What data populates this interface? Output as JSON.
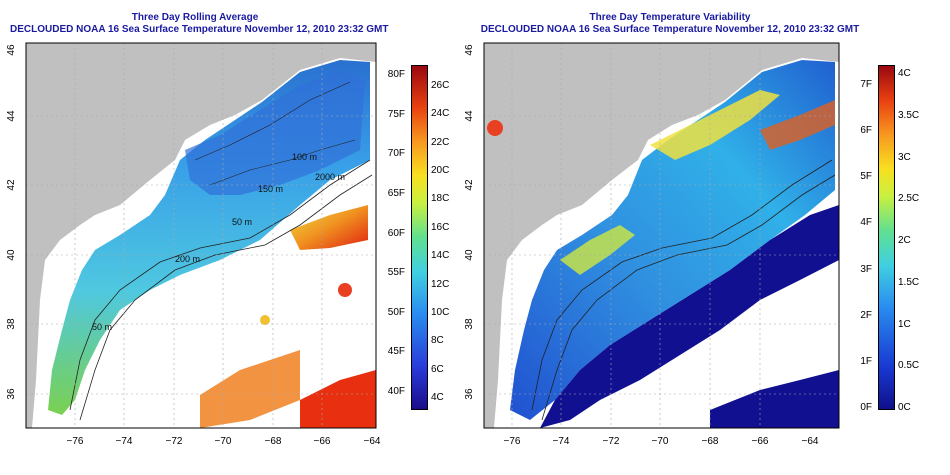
{
  "left": {
    "title1": "Three Day Rolling Average",
    "title2": "DECLOUDED NOAA 16 Sea Surface Temperature November 12, 2010 23:32 GMT",
    "colorbar_f": [
      "80F",
      "75F",
      "70F",
      "65F",
      "60F",
      "55F",
      "50F",
      "45F",
      "40F"
    ],
    "colorbar_c": [
      "26C",
      "24C",
      "22C",
      "20C",
      "18C",
      "16C",
      "14C",
      "12C",
      "10C",
      "8C",
      "6C",
      "4C"
    ],
    "contours": [
      "100 m",
      "150 m",
      "2000 m",
      "50 m",
      "200 m",
      "50 m"
    ]
  },
  "right": {
    "title1": "Three Day Temperature Variability",
    "title2": "DECLOUDED NOAA 16 Sea Surface Temperature November 12, 2010 23:32 GMT",
    "colorbar_f": [
      "7F",
      "6F",
      "5F",
      "4F",
      "3F",
      "2F",
      "1F",
      "0F"
    ],
    "colorbar_c": [
      "4C",
      "3.5C",
      "3C",
      "2.5C",
      "2C",
      "1.5C",
      "1C",
      "0.5C",
      "0C"
    ]
  },
  "axes": {
    "lon_ticks": [
      "−76",
      "−74",
      "−72",
      "−70",
      "−68",
      "−66",
      "−64"
    ],
    "lat_ticks": [
      "46",
      "44",
      "42",
      "40",
      "38",
      "36"
    ]
  },
  "colors": {
    "land": "#c0c0c0",
    "title": "#1a1aa0"
  }
}
